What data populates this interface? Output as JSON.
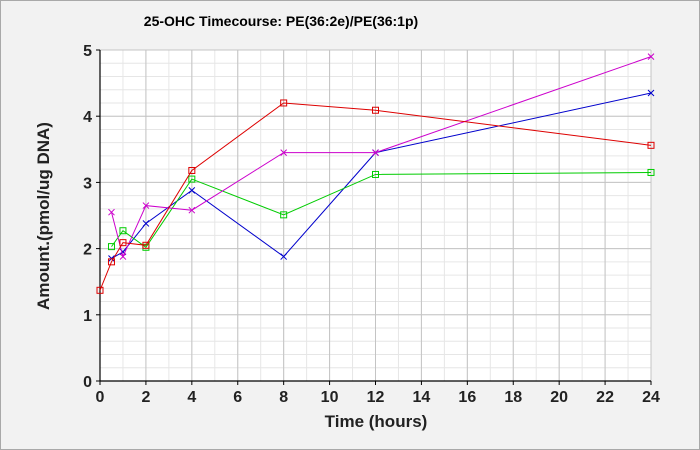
{
  "chart_data": {
    "type": "line",
    "title": "25-OHC Timecourse: PE(36:2e)/PE(36:1p)",
    "xlabel": "Time (hours)",
    "ylabel": "Amount.(pmol/ug DNA)",
    "xlim": [
      0,
      24
    ],
    "ylim": [
      0,
      5
    ],
    "x_ticks": [
      0,
      2,
      4,
      6,
      8,
      10,
      12,
      14,
      16,
      18,
      20,
      22,
      24
    ],
    "y_ticks": [
      0,
      1,
      2,
      3,
      4,
      5
    ],
    "x_minor_step": 1,
    "y_minor_step": 0.2,
    "grid": true,
    "legend": "none",
    "series": [
      {
        "color": "#0000cc",
        "marker": "x",
        "x": [
          0.5,
          1,
          2,
          4,
          8,
          12,
          24
        ],
        "y": [
          1.85,
          1.95,
          2.38,
          2.88,
          1.88,
          3.45,
          4.35
        ]
      },
      {
        "color": "#00cc00",
        "marker": "square",
        "x": [
          0.5,
          1,
          2,
          4,
          8,
          12,
          24
        ],
        "y": [
          2.03,
          2.27,
          2.02,
          3.05,
          2.51,
          3.12,
          3.15
        ]
      },
      {
        "color": "#cc00cc",
        "marker": "x",
        "x": [
          0.5,
          1,
          2,
          4,
          8,
          12,
          24
        ],
        "y": [
          2.55,
          1.88,
          2.65,
          2.58,
          3.45,
          3.45,
          4.9
        ]
      },
      {
        "color": "#dd0000",
        "marker": "square",
        "x": [
          0,
          0.5,
          1,
          2,
          4,
          8,
          12,
          24
        ],
        "y": [
          1.37,
          1.8,
          2.09,
          2.05,
          3.18,
          4.2,
          4.09,
          3.56
        ]
      }
    ]
  }
}
